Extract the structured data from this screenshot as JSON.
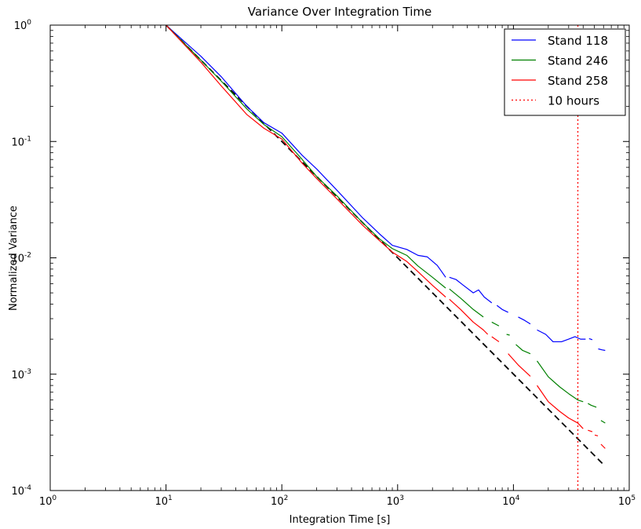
{
  "chart_data": {
    "type": "line",
    "title": "Variance Over Integration Time",
    "xlabel": "Integration Time [s]",
    "ylabel": "Normalized Variance",
    "x_scale": "log",
    "y_scale": "log",
    "xlim": [
      1,
      100000
    ],
    "ylim": [
      0.0001,
      1
    ],
    "grid": false,
    "legend_position": "top-right",
    "x_ticks": [
      {
        "value": 1,
        "base": "10",
        "exp": "0"
      },
      {
        "value": 10,
        "base": "10",
        "exp": "1"
      },
      {
        "value": 100,
        "base": "10",
        "exp": "2"
      },
      {
        "value": 1000,
        "base": "10",
        "exp": "3"
      },
      {
        "value": 10000,
        "base": "10",
        "exp": "4"
      },
      {
        "value": 100000,
        "base": "10",
        "exp": "5"
      }
    ],
    "y_ticks": [
      {
        "value": 0.0001,
        "base": "10",
        "exp": "-4"
      },
      {
        "value": 0.001,
        "base": "10",
        "exp": "-3"
      },
      {
        "value": 0.01,
        "base": "10",
        "exp": "-2"
      },
      {
        "value": 0.1,
        "base": "10",
        "exp": "-1"
      },
      {
        "value": 1,
        "base": "10",
        "exp": "0"
      }
    ],
    "series": [
      {
        "name": "Stand 118",
        "color": "#0000ff",
        "style": "solid",
        "segments": [
          [
            [
              10,
              1.0
            ],
            [
              20,
              0.54
            ],
            [
              30,
              0.36
            ],
            [
              50,
              0.2
            ],
            [
              70,
              0.145
            ],
            [
              100,
              0.118
            ],
            [
              150,
              0.076
            ],
            [
              200,
              0.058
            ],
            [
              300,
              0.038
            ],
            [
              500,
              0.022
            ],
            [
              700,
              0.016
            ],
            [
              900,
              0.0128
            ],
            [
              1200,
              0.0118
            ],
            [
              1500,
              0.0105
            ],
            [
              1800,
              0.0102
            ],
            [
              2200,
              0.0086
            ],
            [
              2600,
              0.0068
            ]
          ],
          [
            [
              2800,
              0.0068
            ],
            [
              3200,
              0.0065
            ],
            [
              3700,
              0.0058
            ],
            [
              4500,
              0.005
            ],
            [
              5000,
              0.0053
            ],
            [
              5600,
              0.0046
            ],
            [
              6500,
              0.0041
            ]
          ],
          [
            [
              7200,
              0.0039
            ],
            [
              8000,
              0.0036
            ],
            [
              9000,
              0.0034
            ]
          ],
          [
            [
              11000,
              0.0031
            ],
            [
              12500,
              0.0029
            ],
            [
              14000,
              0.0027
            ]
          ],
          [
            [
              16000,
              0.0024
            ],
            [
              19000,
              0.0022
            ],
            [
              22000,
              0.0019
            ],
            [
              26000,
              0.0019
            ],
            [
              30000,
              0.002
            ],
            [
              34000,
              0.0021
            ],
            [
              38000,
              0.002
            ],
            [
              42000,
              0.002
            ]
          ],
          [
            [
              45000,
              0.00202
            ],
            [
              48000,
              0.00198
            ]
          ],
          [
            [
              54000,
              0.00165
            ],
            [
              58000,
              0.00162
            ],
            [
              62000,
              0.0016
            ]
          ]
        ]
      },
      {
        "name": "Stand 246",
        "color": "#008000",
        "style": "solid",
        "segments": [
          [
            [
              10,
              1.0
            ],
            [
              20,
              0.5
            ],
            [
              30,
              0.33
            ],
            [
              50,
              0.19
            ],
            [
              70,
              0.14
            ],
            [
              100,
              0.11
            ],
            [
              150,
              0.07
            ],
            [
              200,
              0.05
            ],
            [
              300,
              0.034
            ],
            [
              500,
              0.02
            ],
            [
              700,
              0.0145
            ],
            [
              900,
              0.012
            ],
            [
              1200,
              0.0105
            ],
            [
              1500,
              0.0085
            ],
            [
              2000,
              0.0068
            ],
            [
              2600,
              0.0055
            ]
          ],
          [
            [
              2800,
              0.0054
            ],
            [
              3500,
              0.0045
            ],
            [
              4500,
              0.0036
            ],
            [
              5500,
              0.0031
            ]
          ],
          [
            [
              6500,
              0.0028
            ],
            [
              7500,
              0.0026
            ]
          ],
          [
            [
              9000,
              0.0022
            ]
          ],
          [
            [
              10500,
              0.0018
            ],
            [
              12000,
              0.0016
            ],
            [
              14000,
              0.0015
            ]
          ],
          [
            [
              16000,
              0.0013
            ],
            [
              20000,
              0.00095
            ],
            [
              25000,
              0.00078
            ],
            [
              30000,
              0.00068
            ],
            [
              36000,
              0.0006
            ],
            [
              40000,
              0.00058
            ]
          ],
          [
            [
              44000,
              0.00056
            ],
            [
              47000,
              0.00054
            ],
            [
              52000,
              0.00052
            ]
          ],
          [
            [
              57000,
              0.0004
            ],
            [
              62000,
              0.00038
            ]
          ]
        ]
      },
      {
        "name": "Stand 258",
        "color": "#ff0000",
        "style": "solid",
        "segments": [
          [
            [
              10,
              1.0
            ],
            [
              20,
              0.48
            ],
            [
              30,
              0.3
            ],
            [
              50,
              0.17
            ],
            [
              70,
              0.13
            ],
            [
              100,
              0.105
            ],
            [
              150,
              0.065
            ],
            [
              200,
              0.048
            ],
            [
              300,
              0.032
            ],
            [
              500,
              0.019
            ],
            [
              700,
              0.014
            ],
            [
              900,
              0.0112
            ],
            [
              1200,
              0.0093
            ],
            [
              1500,
              0.0076
            ],
            [
              2000,
              0.0058
            ],
            [
              2600,
              0.0046
            ]
          ],
          [
            [
              2800,
              0.0044
            ],
            [
              3500,
              0.0036
            ],
            [
              4500,
              0.0028
            ],
            [
              5500,
              0.0024
            ],
            [
              6000,
              0.0022
            ]
          ],
          [
            [
              6500,
              0.0021
            ],
            [
              7500,
              0.0019
            ]
          ],
          [
            [
              9000,
              0.0015
            ],
            [
              11000,
              0.0012
            ],
            [
              14000,
              0.00096
            ]
          ],
          [
            [
              16000,
              0.0008
            ],
            [
              20000,
              0.00058
            ],
            [
              25000,
              0.00048
            ],
            [
              30000,
              0.00042
            ],
            [
              36000,
              0.00038
            ],
            [
              40000,
              0.00034
            ]
          ],
          [
            [
              44000,
              0.00033
            ],
            [
              48000,
              0.00032
            ]
          ],
          [
            [
              52000,
              0.0003
            ]
          ],
          [
            [
              57000,
              0.00025
            ],
            [
              62000,
              0.00023
            ]
          ]
        ]
      }
    ],
    "reference_line": {
      "color": "#000000",
      "style": "dashed",
      "points": [
        [
          10,
          1.0
        ],
        [
          60000,
          0.000167
        ]
      ]
    },
    "vertical_line": {
      "name": "10 hours",
      "value": 36000,
      "color": "#ff0000",
      "style": "dotted"
    }
  }
}
